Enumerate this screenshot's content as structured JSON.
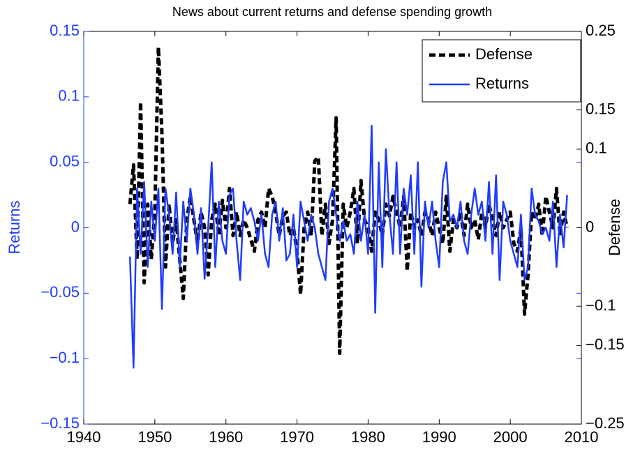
{
  "chart_data": {
    "type": "line",
    "title": "News about current returns and defense spending growth",
    "ylabel": "Returns",
    "y2label": "Defense",
    "x": [
      1946.5,
      1947,
      1947.5,
      1948,
      1948.5,
      1949,
      1949.5,
      1950,
      1950.5,
      1951,
      1951.5,
      1952,
      1952.5,
      1953,
      1953.5,
      1954,
      1954.5,
      1955,
      1955.5,
      1956,
      1956.5,
      1957,
      1957.5,
      1958,
      1958.5,
      1959,
      1959.5,
      1960,
      1960.5,
      1961,
      1961.5,
      1962,
      1962.5,
      1963,
      1963.5,
      1964,
      1964.5,
      1965,
      1965.5,
      1966,
      1966.5,
      1967,
      1967.5,
      1968,
      1968.5,
      1969,
      1969.5,
      1970,
      1970.5,
      1971,
      1971.5,
      1972,
      1972.5,
      1973,
      1973.5,
      1974,
      1974.5,
      1975,
      1975.5,
      1976,
      1976.5,
      1977,
      1977.5,
      1978,
      1978.5,
      1979,
      1979.5,
      1980,
      1980.5,
      1981,
      1981.5,
      1982,
      1982.5,
      1983,
      1983.5,
      1984,
      1984.5,
      1985,
      1985.5,
      1986,
      1986.5,
      1987,
      1987.5,
      1988,
      1988.5,
      1989,
      1989.5,
      1990,
      1990.5,
      1991,
      1991.5,
      1992,
      1992.5,
      1993,
      1993.5,
      1994,
      1994.5,
      1995,
      1995.5,
      1996,
      1996.5,
      1997,
      1997.5,
      1998,
      1998.5,
      1999,
      1999.5,
      2000,
      2000.5,
      2001,
      2001.5,
      2002,
      2002.5,
      2003,
      2003.5,
      2004,
      2004.5,
      2005,
      2005.5,
      2006,
      2006.5,
      2007,
      2007.5,
      2008
    ],
    "series": [
      {
        "name": "Defense",
        "color": "#000000",
        "axis": "y2",
        "dashed": true,
        "values": [
          0.03,
          0.08,
          -0.04,
          0.16,
          -0.07,
          0.03,
          -0.04,
          0.02,
          0.23,
          0.12,
          -0.05,
          0.03,
          -0.02,
          0.01,
          -0.04,
          -0.09,
          0.01,
          0.04,
          0.01,
          -0.02,
          0.02,
          0.0,
          -0.06,
          0.01,
          0.03,
          -0.01,
          0.035,
          0.0,
          0.05,
          -0.01,
          0.02,
          -0.01,
          0.01,
          0.0,
          -0.015,
          -0.03,
          0.01,
          0.02,
          0.0,
          0.05,
          0.04,
          0.02,
          -0.01,
          0.015,
          0.02,
          -0.01,
          0.0,
          -0.03,
          -0.085,
          0.0,
          0.02,
          -0.01,
          0.085,
          0.09,
          -0.01,
          0.03,
          -0.02,
          0.01,
          0.14,
          -0.16,
          0.03,
          0.0,
          0.02,
          0.05,
          -0.02,
          0.06,
          0.01,
          0.0,
          -0.03,
          0.02,
          0.01,
          -0.01,
          0.03,
          0.015,
          0.04,
          0.02,
          0.0,
          0.04,
          -0.055,
          0.02,
          0.0,
          0.01,
          -0.01,
          0.02,
          0.01,
          -0.01,
          0.02,
          0.0,
          -0.02,
          0.04,
          -0.03,
          0.01,
          0.0,
          0.02,
          -0.01,
          0.03,
          0.0,
          0.01,
          -0.015,
          0.02,
          0.0,
          0.03,
          0.01,
          -0.01,
          0.02,
          0.0,
          0.01,
          0.02,
          -0.02,
          -0.03,
          0.0,
          -0.11,
          -0.06,
          0.02,
          0.01,
          0.03,
          -0.01,
          0.04,
          0.02,
          0.0,
          0.05,
          -0.01,
          0.02,
          0.0
        ]
      },
      {
        "name": "Returns",
        "color": "#1f3cff",
        "axis": "y",
        "dashed": false,
        "values": [
          -0.022,
          -0.107,
          0.03,
          -0.02,
          0.035,
          -0.03,
          0.02,
          -0.01,
          0.03,
          -0.062,
          0.03,
          0.01,
          -0.02,
          0.027,
          -0.03,
          0.02,
          -0.01,
          0.03,
          0.01,
          -0.02,
          0.015,
          -0.039,
          0.0,
          0.05,
          -0.03,
          0.02,
          -0.01,
          -0.02,
          0.025,
          0.03,
          -0.01,
          -0.04,
          0.02,
          0.01,
          0.015,
          0.005,
          -0.01,
          0.01,
          -0.02,
          -0.03,
          0.01,
          0.02,
          -0.01,
          0.015,
          -0.025,
          -0.02,
          0.01,
          -0.03,
          0.02,
          0.005,
          -0.01,
          0.01,
          0.0,
          -0.02,
          -0.03,
          -0.04,
          0.02,
          0.03,
          0.01,
          -0.01,
          0.005,
          -0.01,
          -0.005,
          -0.02,
          0.02,
          -0.01,
          0.01,
          -0.02,
          0.078,
          -0.065,
          0.05,
          -0.03,
          0.06,
          0.01,
          -0.02,
          0.05,
          -0.02,
          0.03,
          0.01,
          0.04,
          -0.02,
          0.05,
          -0.045,
          0.02,
          0.0,
          0.02,
          -0.01,
          -0.03,
          0.035,
          0.05,
          0.005,
          0.01,
          0.0,
          0.02,
          -0.01,
          -0.02,
          0.01,
          0.03,
          0.01,
          0.02,
          -0.01,
          0.035,
          -0.02,
          0.04,
          -0.04,
          0.02,
          0.01,
          -0.01,
          -0.02,
          -0.03,
          0.01,
          -0.04,
          -0.03,
          0.03,
          0.01,
          0.005,
          -0.005,
          0.0,
          -0.01,
          0.02,
          -0.03,
          0.01,
          -0.015,
          0.025
        ]
      }
    ],
    "xlim": [
      1940,
      2010
    ],
    "xticks": [
      1940,
      1950,
      1960,
      1970,
      1980,
      1990,
      2000,
      2010
    ],
    "ylim": [
      -0.15,
      0.15
    ],
    "yticks": [
      {
        "value": -0.15,
        "label": "−0.15"
      },
      {
        "value": -0.1,
        "label": "−0.1"
      },
      {
        "value": -0.05,
        "label": "−0.05"
      },
      0,
      0.05,
      0.1,
      0.15
    ],
    "y2lim": [
      -0.25,
      0.25
    ],
    "y2ticks": [
      {
        "value": -0.25,
        "label": "−0.25"
      },
      {
        "value": -0.15,
        "label": "−0.15"
      },
      {
        "value": -0.1,
        "label": "−0.1"
      },
      0,
      0.1,
      0.15,
      0.25
    ],
    "ycolor": "#1f3cff",
    "legend": "northeast"
  }
}
